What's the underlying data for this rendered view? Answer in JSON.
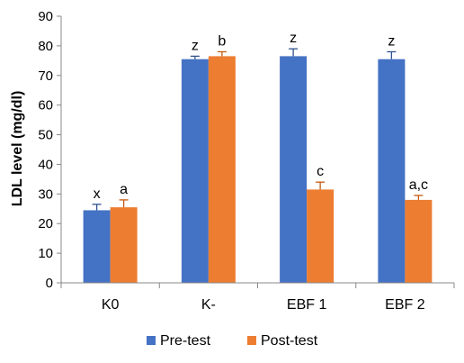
{
  "chart_data": {
    "type": "bar",
    "title": "",
    "xlabel": "",
    "ylabel": "LDL level (mg/dl)",
    "ylim": [
      0,
      90
    ],
    "yticks": [
      0,
      10,
      20,
      30,
      40,
      50,
      60,
      70,
      80,
      90
    ],
    "grid": false,
    "legend_position": "bottom",
    "categories": [
      "K0",
      "K-",
      "EBF 1",
      "EBF 2"
    ],
    "series": [
      {
        "name": "Pre-test",
        "color": "#4472C4",
        "values": [
          24.5,
          75.5,
          76.5,
          75.5
        ],
        "errors": [
          2.0,
          1.0,
          2.5,
          2.5
        ],
        "labels": [
          "x",
          "z",
          "z",
          "z"
        ]
      },
      {
        "name": "Post-test",
        "color": "#ED7D31",
        "values": [
          25.5,
          76.5,
          31.5,
          28.0
        ],
        "errors": [
          2.5,
          1.5,
          2.5,
          1.5
        ],
        "labels": [
          "a",
          "b",
          "c",
          "a,c"
        ]
      }
    ]
  }
}
